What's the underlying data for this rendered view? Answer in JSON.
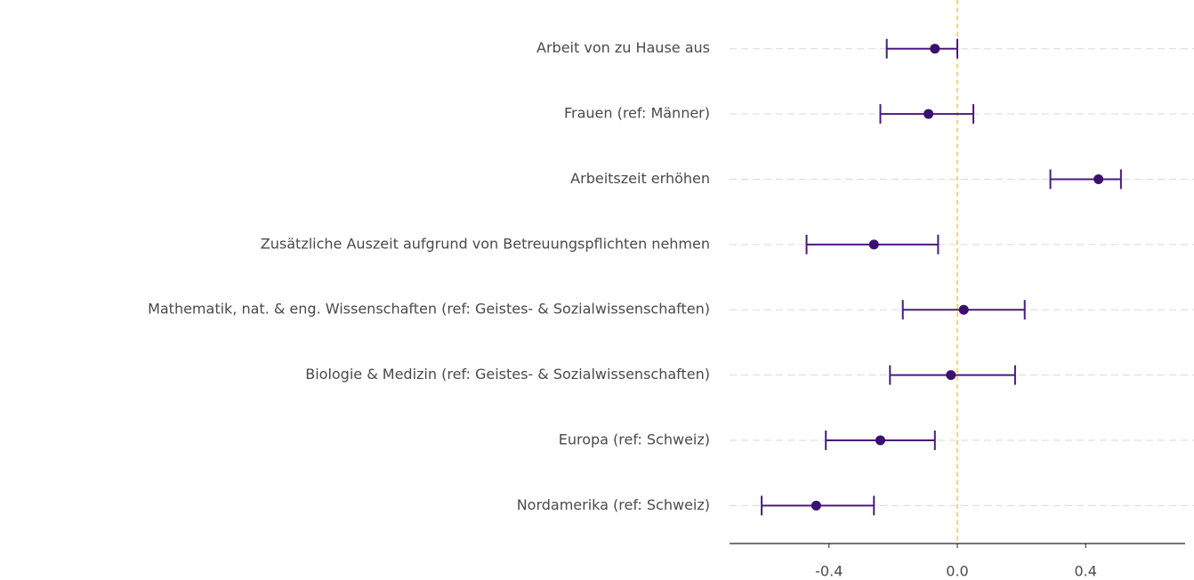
{
  "chart_data": {
    "type": "coefplot",
    "categories": [
      "Arbeit von zu Hause aus",
      "Frauen (ref: Männer)",
      "Arbeitszeit erhöhen",
      "Zusätzliche Auszeit aufgrund von Betreuungspflichten nehmen",
      "Mathematik, nat. & eng. Wissenschaften (ref: Geistes- & Sozialwissenschaften)",
      "Biologie & Medizin (ref: Geistes- & Sozialwissenschaften)",
      "Europa (ref: Schweiz)",
      "Nordamerika (ref: Schweiz)"
    ],
    "values": [
      -0.07,
      -0.09,
      0.44,
      -0.26,
      0.02,
      -0.02,
      -0.24,
      -0.44
    ],
    "lower": [
      -0.22,
      -0.24,
      0.29,
      -0.47,
      -0.17,
      -0.21,
      -0.41,
      -0.61
    ],
    "upper": [
      0.0,
      0.05,
      0.51,
      -0.06,
      0.21,
      0.18,
      -0.07,
      -0.26
    ],
    "color": "#3b0f70",
    "reference_line": 0,
    "reference_color": "#f2c12e",
    "xlim": [
      -0.71,
      0.71
    ],
    "xticks": [
      {
        "value": -0.4,
        "label": "-0.4"
      },
      {
        "value": 0,
        "label": "0.0"
      },
      {
        "value": 0.4,
        "label": "0.4"
      }
    ],
    "grid": true
  }
}
